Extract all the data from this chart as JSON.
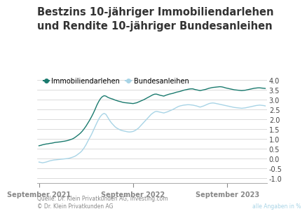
{
  "title_line1": "Bestzins 10-jähriger Immobiliendarlehen",
  "title_line2": "und Rendite 10-jähriger Bundesanleihen",
  "legend_immo": "Immobiliendarlehen",
  "legend_bund": "Bundesanleihen",
  "color_immo": "#1a7a6e",
  "color_bund": "#a8d4e6",
  "source_text": "Quelle: Dr. Klein Privatkunden AG, investing.com\n© Dr. Klein Privatkunden AG",
  "source_right": "alle Angaben in %",
  "xtick_labels": [
    "September 2021",
    "September 2022",
    "September 2023"
  ],
  "yticks": [
    -1.0,
    -0.5,
    0.0,
    0.5,
    1.0,
    1.5,
    2.0,
    2.5,
    3.0,
    3.5,
    4.0
  ],
  "ylim": [
    -1.25,
    4.25
  ],
  "background_color": "#ffffff",
  "grid_color": "#cccccc",
  "immo_data": [
    0.65,
    0.67,
    0.7,
    0.72,
    0.74,
    0.75,
    0.77,
    0.78,
    0.8,
    0.82,
    0.83,
    0.84,
    0.85,
    0.87,
    0.88,
    0.9,
    0.92,
    0.95,
    0.98,
    1.02,
    1.08,
    1.15,
    1.22,
    1.3,
    1.4,
    1.52,
    1.65,
    1.8,
    1.95,
    2.12,
    2.3,
    2.5,
    2.72,
    2.9,
    3.05,
    3.15,
    3.2,
    3.18,
    3.12,
    3.08,
    3.05,
    3.02,
    2.98,
    2.95,
    2.92,
    2.9,
    2.87,
    2.85,
    2.84,
    2.83,
    2.82,
    2.81,
    2.8,
    2.82,
    2.84,
    2.88,
    2.92,
    2.96,
    3.0,
    3.05,
    3.1,
    3.15,
    3.2,
    3.25,
    3.28,
    3.28,
    3.25,
    3.22,
    3.2,
    3.18,
    3.22,
    3.25,
    3.28,
    3.3,
    3.32,
    3.35,
    3.38,
    3.4,
    3.42,
    3.45,
    3.48,
    3.5,
    3.52,
    3.54,
    3.55,
    3.55,
    3.52,
    3.5,
    3.48,
    3.46,
    3.48,
    3.5,
    3.52,
    3.55,
    3.58,
    3.6,
    3.62,
    3.63,
    3.64,
    3.65,
    3.66,
    3.65,
    3.63,
    3.6,
    3.58,
    3.56,
    3.54,
    3.52,
    3.5,
    3.49,
    3.48,
    3.47,
    3.46,
    3.47,
    3.48,
    3.5,
    3.52,
    3.54,
    3.56,
    3.58,
    3.59,
    3.6,
    3.6,
    3.59,
    3.58,
    3.57
  ],
  "bund_data": [
    -0.18,
    -0.2,
    -0.22,
    -0.2,
    -0.18,
    -0.15,
    -0.12,
    -0.1,
    -0.08,
    -0.07,
    -0.06,
    -0.05,
    -0.04,
    -0.03,
    -0.02,
    -0.01,
    0.0,
    0.02,
    0.05,
    0.08,
    0.12,
    0.18,
    0.25,
    0.32,
    0.42,
    0.55,
    0.7,
    0.88,
    1.05,
    1.22,
    1.42,
    1.62,
    1.82,
    2.0,
    2.15,
    2.25,
    2.3,
    2.25,
    2.1,
    1.95,
    1.82,
    1.72,
    1.62,
    1.55,
    1.5,
    1.45,
    1.42,
    1.4,
    1.38,
    1.36,
    1.35,
    1.36,
    1.38,
    1.42,
    1.48,
    1.55,
    1.65,
    1.75,
    1.85,
    1.95,
    2.05,
    2.15,
    2.25,
    2.32,
    2.38,
    2.4,
    2.38,
    2.36,
    2.34,
    2.32,
    2.35,
    2.38,
    2.42,
    2.46,
    2.5,
    2.55,
    2.6,
    2.65,
    2.68,
    2.7,
    2.72,
    2.73,
    2.74,
    2.74,
    2.73,
    2.72,
    2.7,
    2.68,
    2.65,
    2.62,
    2.65,
    2.68,
    2.72,
    2.76,
    2.8,
    2.82,
    2.83,
    2.82,
    2.8,
    2.78,
    2.76,
    2.74,
    2.72,
    2.7,
    2.68,
    2.66,
    2.64,
    2.62,
    2.6,
    2.59,
    2.58,
    2.57,
    2.56,
    2.57,
    2.58,
    2.6,
    2.62,
    2.64,
    2.66,
    2.68,
    2.7,
    2.71,
    2.72,
    2.71,
    2.7,
    2.68
  ],
  "n_points": 126,
  "x_ticks_pos": [
    0,
    52,
    104
  ],
  "title_fontsize": 10.5,
  "legend_fontsize": 7,
  "tick_fontsize": 7,
  "source_fontsize": 5.5
}
